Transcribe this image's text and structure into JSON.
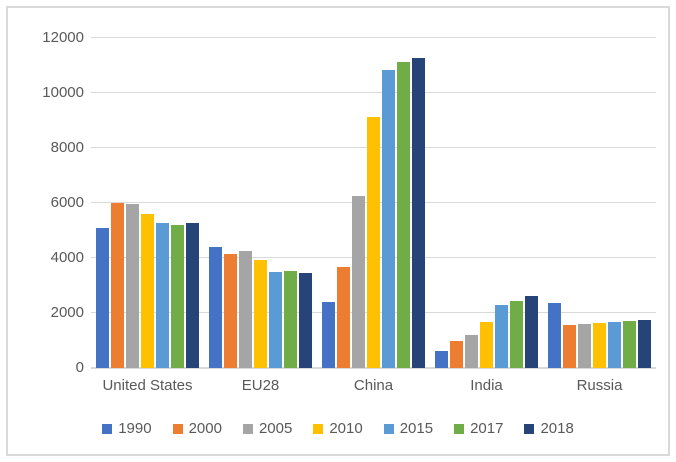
{
  "window": {
    "background_color": "#FFFFFF",
    "frame_border_color": "#D9D9D9"
  },
  "chart_data": {
    "type": "bar",
    "title": "",
    "xlabel": "",
    "ylabel": "",
    "categories": [
      "United States",
      "EU28",
      "China",
      "India",
      "Russia"
    ],
    "series": [
      {
        "name": "1990",
        "color": "#4472C4",
        "values": [
          5086,
          4409,
          2397,
          606,
          2379
        ]
      },
      {
        "name": "2000",
        "color": "#ED7D31",
        "values": [
          5999,
          4142,
          3665,
          984,
          1559
        ]
      },
      {
        "name": "2005",
        "color": "#A5A5A5",
        "values": [
          5971,
          4263,
          6263,
          1186,
          1606
        ]
      },
      {
        "name": "2010",
        "color": "#FFC000",
        "values": [
          5592,
          3939,
          9146,
          1678,
          1653
        ]
      },
      {
        "name": "2015",
        "color": "#5B9BD5",
        "values": [
          5264,
          3480,
          10837,
          2283,
          1663
        ]
      },
      {
        "name": "2017",
        "color": "#70AD47",
        "values": [
          5210,
          3544,
          11110,
          2434,
          1692
        ]
      },
      {
        "name": "2018",
        "color": "#264478",
        "values": [
          5275,
          3457,
          11256,
          2622,
          1748
        ]
      }
    ],
    "ylim": [
      0,
      12000
    ],
    "ytick_interval": 2000,
    "ytick_labels": [
      "0",
      "2000",
      "4000",
      "6000",
      "8000",
      "10000",
      "12000"
    ],
    "grid": true,
    "gridline_color": "#D9D9D9",
    "axis_line_color": "#D9D9D9",
    "axis_text_color": "#595959",
    "legend_position": "bottom",
    "legend_labels": [
      "1990",
      "2000",
      "2005",
      "2010",
      "2015",
      "2017",
      "2018"
    ]
  }
}
